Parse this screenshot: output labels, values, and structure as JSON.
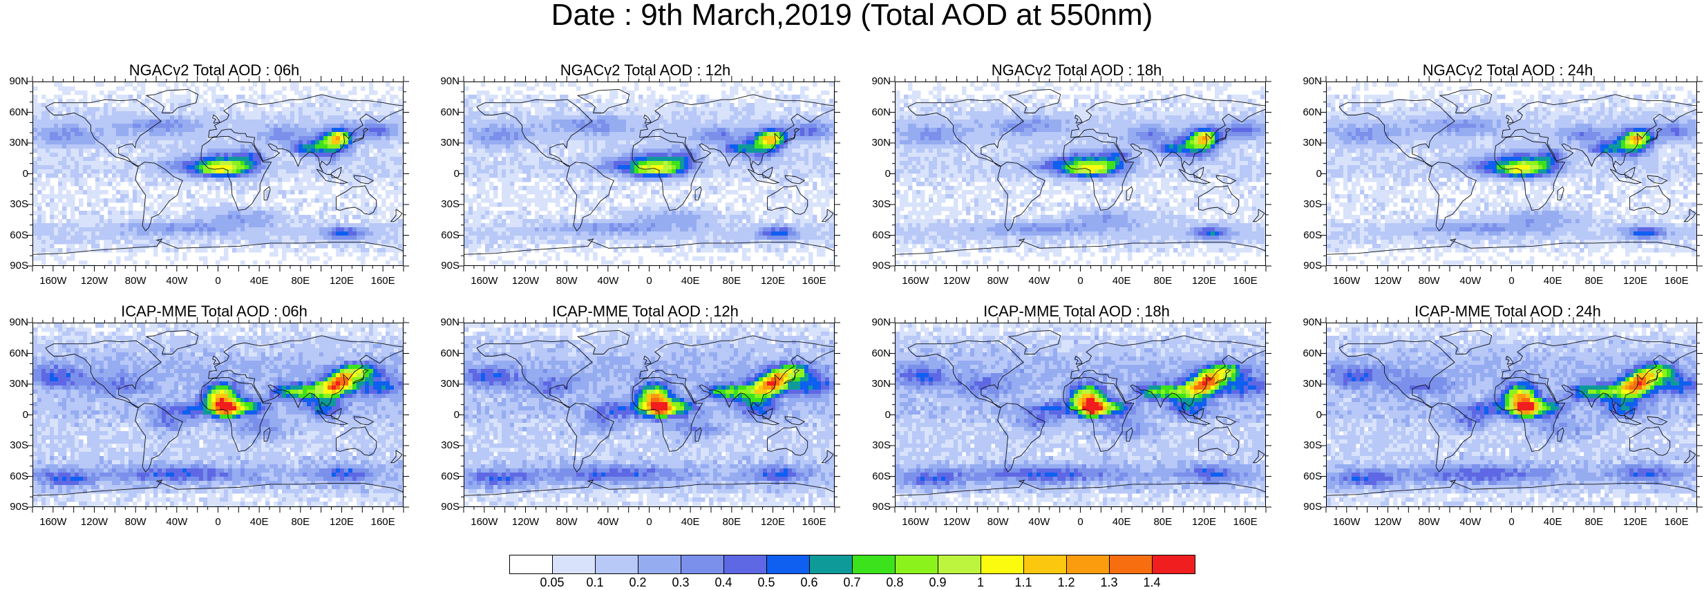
{
  "title": "Date : 9th March,2019 (Total AOD at 550nm)",
  "lat_labels": [
    "90N",
    "60N",
    "30N",
    "0",
    "30S",
    "60S",
    "90S"
  ],
  "lon_labels": [
    "160W",
    "120W",
    "80W",
    "40W",
    "0",
    "40E",
    "80E",
    "120E",
    "160E"
  ],
  "panels": [
    {
      "title": "NGACv2 Total AOD : 06h",
      "model": "NGACv2",
      "hour": "06h"
    },
    {
      "title": "NGACv2 Total AOD : 12h",
      "model": "NGACv2",
      "hour": "12h"
    },
    {
      "title": "NGACv2 Total AOD : 18h",
      "model": "NGACv2",
      "hour": "18h"
    },
    {
      "title": "NGACv2 Total AOD : 24h",
      "model": "NGACv2",
      "hour": "24h"
    },
    {
      "title": "ICAP-MME Total AOD : 06h",
      "model": "ICAP-MME",
      "hour": "06h"
    },
    {
      "title": "ICAP-MME Total AOD : 12h",
      "model": "ICAP-MME",
      "hour": "12h"
    },
    {
      "title": "ICAP-MME Total AOD : 18h",
      "model": "ICAP-MME",
      "hour": "18h"
    },
    {
      "title": "ICAP-MME Total AOD : 24h",
      "model": "ICAP-MME",
      "hour": "24h"
    }
  ],
  "colorbar": {
    "labels": [
      "0.05",
      "0.1",
      "0.2",
      "0.3",
      "0.4",
      "0.5",
      "0.6",
      "0.7",
      "0.8",
      "0.9",
      "1",
      "1.1",
      "1.2",
      "1.3",
      "1.4"
    ],
    "colors": [
      "#ffffff",
      "#d8e2fb",
      "#b8c8f7",
      "#96acf1",
      "#7a90ea",
      "#5f68e4",
      "#0f5ff0",
      "#0f9a9a",
      "#3ce21c",
      "#8cf21c",
      "#bdf53e",
      "#fbfb10",
      "#fbc70f",
      "#fb9c0f",
      "#f76e10",
      "#f01e1e"
    ]
  }
}
